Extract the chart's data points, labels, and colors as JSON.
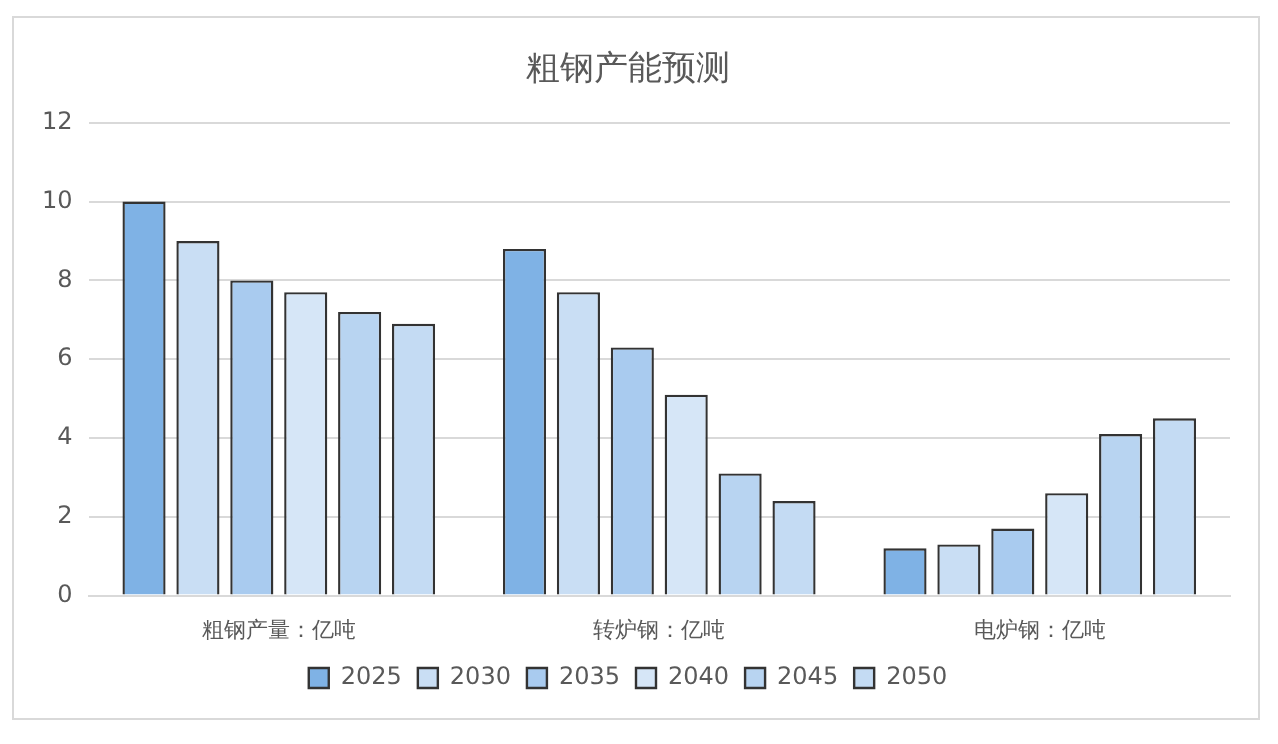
{
  "chart_data": {
    "type": "bar",
    "title": "粗钢产能预测",
    "categories": [
      "粗钢产量：亿吨",
      "转炉钢：亿吨",
      "电炉钢：亿吨"
    ],
    "series": [
      {
        "name": "2025",
        "color": "#7fb2e5",
        "values": [
          10,
          8.8,
          1.2
        ]
      },
      {
        "name": "2030",
        "color": "#c9def4",
        "values": [
          9,
          7.7,
          1.3
        ]
      },
      {
        "name": "2035",
        "color": "#a9cbef",
        "values": [
          8,
          6.3,
          1.7
        ]
      },
      {
        "name": "2040",
        "color": "#d6e6f7",
        "values": [
          7.7,
          5.1,
          2.6
        ]
      },
      {
        "name": "2045",
        "color": "#b8d4f1",
        "values": [
          7.2,
          3.1,
          4.1
        ]
      },
      {
        "name": "2050",
        "color": "#c4dbf3",
        "values": [
          6.9,
          2.4,
          4.5
        ]
      }
    ],
    "ylim": [
      0,
      12
    ],
    "yticks": [
      0,
      2,
      4,
      6,
      8,
      10,
      12
    ],
    "grid": "y",
    "legend": "bottom"
  }
}
